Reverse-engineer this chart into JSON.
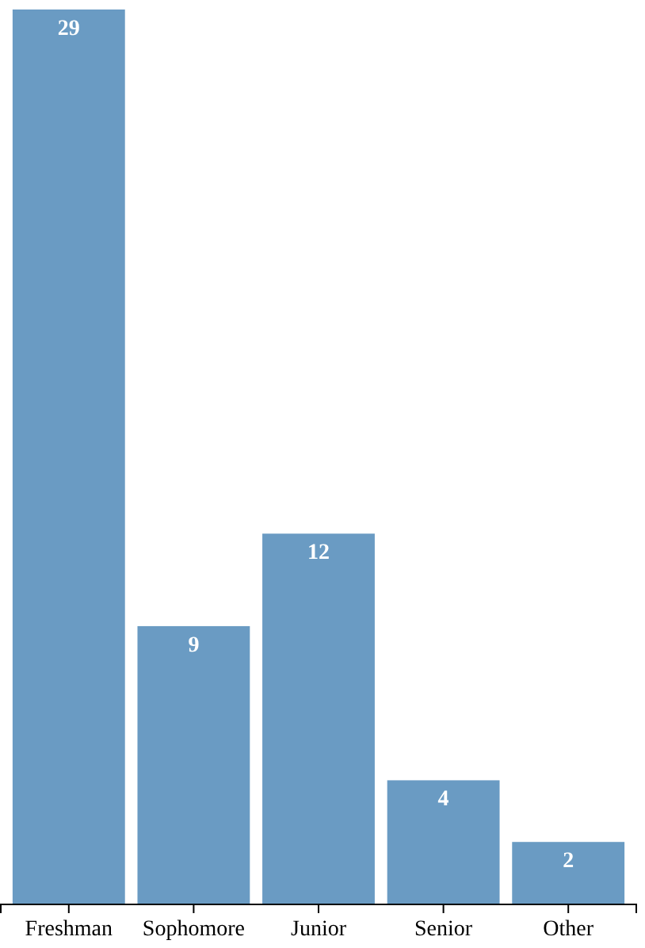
{
  "chart_data": {
    "type": "bar",
    "categories": [
      "Freshman",
      "Sophomore",
      "Junior",
      "Senior",
      "Other"
    ],
    "values": [
      29,
      9,
      12,
      4,
      2
    ],
    "color": "#6a9bc3",
    "data_labels": true
  }
}
